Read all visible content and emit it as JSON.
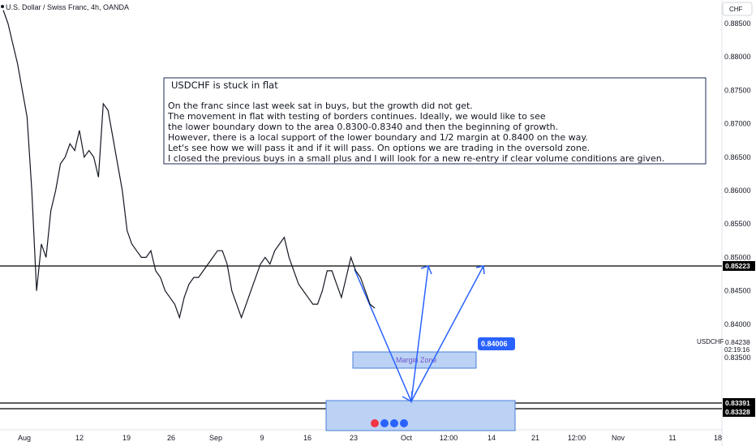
{
  "header": {
    "symbol_title": "U.S. Dollar / Swiss Franc, 4h, OANDA"
  },
  "currency_badge": "CHF",
  "symbol_side_label": "USDCHF",
  "countdown": "02:19:16",
  "note": {
    "title": "USDCHF is stuck in flat",
    "lines": [
      "On the franc since last week sat in buys, but the growth did not get.",
      "The movement in flat with testing of borders continues. Ideally, we would like to see",
      "the lower boundary down to the area 0.8300-0.8340 and then the beginning of growth.",
      "However, there is a local support of the lower boundary and 1/2 margin at 0.8400 on the way.",
      "Let's see how we will pass it and if it will pass. On options we are trading in the oversold zone.",
      "I closed the previous buys in a small plus and I will look for a new re-entry if clear volume conditions are given."
    ]
  },
  "annotations": {
    "margin_zone_label": "Margin Zone",
    "margin_badge": "0.84006"
  },
  "colors": {
    "candle": "#131722",
    "hline": "#000000",
    "arrow": "#2962ff",
    "zone_fill": "#bbd2f5",
    "zone_stroke": "#4a7fd6",
    "badge_blue": "#2962ff",
    "badge_dark": "#000000"
  },
  "chart_data": {
    "type": "line",
    "title": "U.S. Dollar / Swiss Franc, 4h, OANDA",
    "y_ticks": [
      "0.88500",
      "0.88000",
      "0.87500",
      "0.87000",
      "0.86500",
      "0.86000",
      "0.85500",
      "0.85000",
      "0.84500",
      "0.84000",
      "0.83500"
    ],
    "ylim": [
      0.8318,
      0.8875
    ],
    "x_ticks": [
      "Aug",
      "12",
      "19",
      "26",
      "Sep",
      "9",
      "16",
      "23",
      "Oct",
      "12:00",
      "14",
      "21",
      "12:00",
      "Nov",
      "11",
      "18"
    ],
    "price_labels": {
      "current": "0.84238",
      "resistance": "0.85223",
      "support_upper": "0.83391",
      "support_lower": "0.83328"
    },
    "horizontal_levels": [
      0.85223,
      0.83391,
      0.83328
    ],
    "zones": [
      {
        "label": "Margin Zone",
        "from": 0.8386,
        "to": 0.8406
      },
      {
        "label": "",
        "from": 0.8306,
        "to": 0.8346
      }
    ],
    "series": [
      {
        "values": [
          0.887,
          0.885,
          0.882,
          0.879,
          0.875,
          0.871,
          0.86,
          0.845,
          0.852,
          0.85,
          0.857,
          0.86,
          0.864,
          0.865,
          0.867,
          0.866,
          0.869,
          0.865,
          0.866,
          0.865,
          0.862,
          0.873,
          0.872,
          0.868,
          0.864,
          0.86,
          0.854,
          0.852,
          0.851,
          0.85,
          0.85,
          0.851,
          0.848,
          0.847,
          0.845,
          0.844,
          0.843,
          0.841,
          0.844,
          0.846,
          0.847,
          0.847,
          0.848,
          0.849,
          0.85,
          0.851,
          0.851,
          0.849,
          0.845,
          0.843,
          0.841,
          0.843,
          0.845,
          0.847,
          0.849,
          0.85,
          0.849,
          0.851,
          0.852,
          0.853,
          0.85,
          0.848,
          0.846,
          0.845,
          0.844,
          0.843,
          0.843,
          0.845,
          0.848,
          0.848,
          0.846,
          0.844,
          0.847,
          0.85,
          0.848,
          0.847,
          0.845,
          0.843,
          0.8424
        ]
      }
    ]
  }
}
